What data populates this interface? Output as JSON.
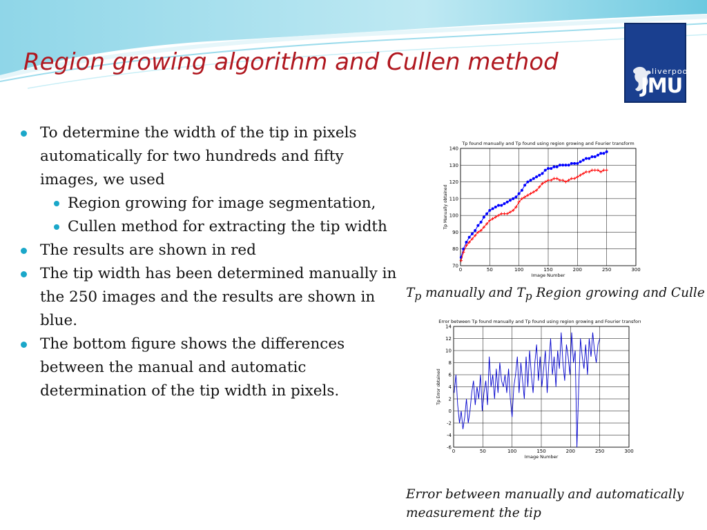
{
  "slide": {
    "title": "Region growing algorithm and Cullen method",
    "logo": {
      "line1": "liverpool",
      "line2": "JMU"
    },
    "bullets": [
      {
        "text": "To determine the width of the tip in pixels automatically for two hundreds and fifty images, we used",
        "children": [
          {
            "text": "Region growing for image segmentation,"
          },
          {
            "text": "Cullen method for extracting the tip width"
          }
        ]
      },
      {
        "text": "The results are shown in red"
      },
      {
        "text": "The tip width has been determined manually in the 250 images and the results are shown in blue."
      },
      {
        "text": "The bottom figure shows the differences between the manual and automatic determination of the tip width in pixels."
      }
    ],
    "captions": {
      "top": {
        "t1": "T",
        "s1": "p",
        "mid": " manually and ",
        "t2": "T",
        "s2": "p",
        "end": " Region growing and Culle"
      },
      "bottom": {
        "line1": "Error between manually and automatically",
        "line2": " measurement the tip"
      }
    },
    "colors": {
      "title": "#b0171f",
      "bullet": "#1aa7c9",
      "manual": "#0000ff",
      "auto": "#ff0000",
      "error": "#0000cc"
    }
  },
  "chart_data": [
    {
      "type": "line",
      "title": "Tp found manually and Tp found using region growing and Fourier transform",
      "xlabel": "Image Number",
      "ylabel": "Tp Manually obtained",
      "xlim": [
        0,
        300
      ],
      "ylim": [
        70,
        140
      ],
      "xticks": [
        0,
        50,
        100,
        150,
        200,
        250,
        300
      ],
      "yticks": [
        70,
        80,
        90,
        100,
        110,
        120,
        130,
        140
      ],
      "grid": true,
      "series": [
        {
          "color": "#0000ff",
          "marker": "*",
          "x": [
            1,
            5,
            10,
            15,
            20,
            25,
            30,
            35,
            40,
            45,
            50,
            55,
            60,
            65,
            70,
            75,
            80,
            85,
            90,
            95,
            100,
            105,
            110,
            115,
            120,
            125,
            130,
            135,
            140,
            145,
            150,
            155,
            160,
            165,
            170,
            175,
            180,
            185,
            190,
            195,
            200,
            205,
            210,
            215,
            220,
            225,
            230,
            235,
            240,
            245,
            250
          ],
          "y": [
            75,
            80,
            84,
            87,
            89,
            91,
            94,
            96,
            99,
            101,
            103,
            104,
            105,
            106,
            106,
            107,
            108,
            109,
            110,
            111,
            113,
            115,
            118,
            120,
            121,
            122,
            123,
            124,
            125,
            127,
            128,
            128,
            129,
            129,
            130,
            130,
            130,
            130,
            131,
            131,
            131,
            132,
            133,
            134,
            134,
            135,
            135,
            136,
            137,
            137,
            138
          ]
        },
        {
          "color": "#ff0000",
          "marker": "+",
          "x": [
            1,
            5,
            10,
            15,
            20,
            25,
            30,
            35,
            40,
            45,
            50,
            55,
            60,
            65,
            70,
            75,
            80,
            85,
            90,
            95,
            100,
            105,
            110,
            115,
            120,
            125,
            130,
            135,
            140,
            145,
            150,
            155,
            160,
            165,
            170,
            175,
            180,
            185,
            190,
            195,
            200,
            205,
            210,
            215,
            220,
            225,
            230,
            235,
            240,
            245,
            250
          ],
          "y": [
            73,
            78,
            82,
            84,
            86,
            88,
            90,
            91,
            93,
            95,
            97,
            98,
            99,
            100,
            101,
            101,
            101,
            102,
            103,
            105,
            108,
            110,
            111,
            112,
            113,
            114,
            115,
            117,
            119,
            120,
            121,
            121,
            122,
            122,
            121,
            121,
            120,
            121,
            122,
            122,
            123,
            124,
            125,
            126,
            126,
            127,
            127,
            127,
            126,
            127,
            127
          ]
        }
      ]
    },
    {
      "type": "line",
      "title": "Error between Tp found manually and Tp found using region growing and Fourier transform",
      "xlabel": "Image Number",
      "ylabel": "Tp Error obtained",
      "xlim": [
        0,
        300
      ],
      "ylim": [
        -6,
        14
      ],
      "xticks": [
        0,
        50,
        100,
        150,
        200,
        250,
        300
      ],
      "yticks": [
        -6,
        -4,
        -2,
        0,
        2,
        4,
        6,
        8,
        10,
        12,
        14
      ],
      "grid": true,
      "series": [
        {
          "color": "#0000cc",
          "x": [
            1,
            4,
            7,
            10,
            13,
            16,
            19,
            22,
            25,
            28,
            31,
            34,
            37,
            40,
            43,
            46,
            49,
            52,
            55,
            58,
            61,
            64,
            67,
            70,
            73,
            76,
            79,
            82,
            85,
            88,
            91,
            94,
            97,
            100,
            103,
            106,
            109,
            112,
            115,
            118,
            121,
            124,
            127,
            130,
            133,
            136,
            139,
            142,
            145,
            148,
            151,
            154,
            157,
            160,
            163,
            166,
            169,
            172,
            175,
            178,
            181,
            184,
            187,
            190,
            193,
            196,
            199,
            202,
            205,
            208,
            211,
            214,
            217,
            220,
            223,
            226,
            229,
            232,
            235,
            238,
            241,
            244,
            247,
            250
          ],
          "y": [
            3,
            6,
            1,
            -2,
            0,
            -3,
            -1,
            2,
            -2,
            0,
            3,
            5,
            1,
            4,
            2,
            6,
            0,
            3,
            5,
            1,
            9,
            4,
            6,
            2,
            7,
            3,
            8,
            5,
            4,
            6,
            3,
            7,
            2,
            -1,
            4,
            6,
            9,
            3,
            8,
            5,
            2,
            9,
            4,
            10,
            6,
            3,
            8,
            11,
            5,
            9,
            4,
            7,
            10,
            3,
            8,
            12,
            6,
            9,
            4,
            10,
            7,
            13,
            8,
            5,
            11,
            9,
            6,
            13,
            8,
            10,
            -6,
            4,
            12,
            9,
            7,
            11,
            6,
            12,
            9,
            13,
            10,
            8,
            11,
            12
          ]
        }
      ]
    }
  ]
}
